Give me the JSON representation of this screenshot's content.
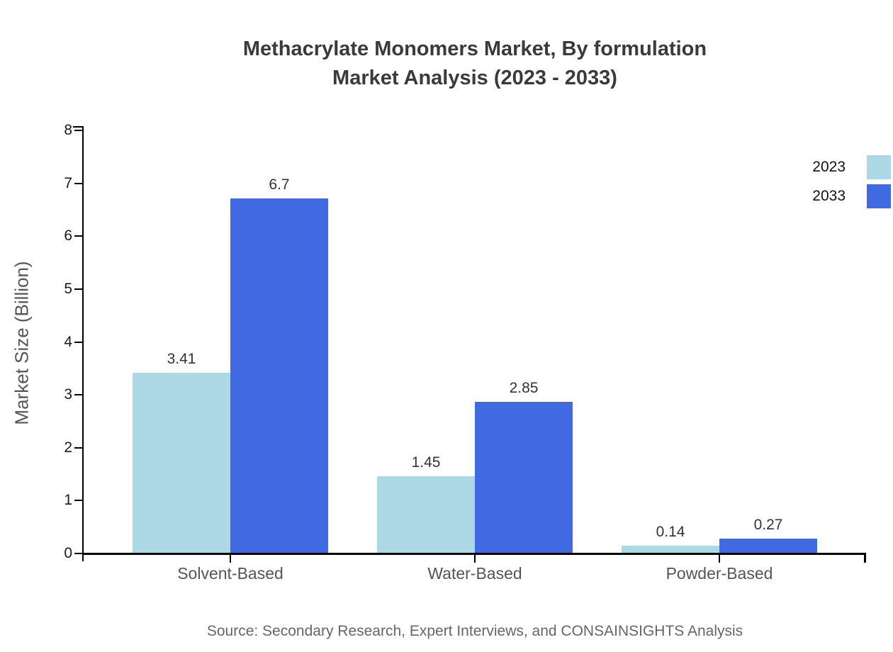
{
  "title": {
    "line1": "Methacrylate Monomers Market, By formulation",
    "line2": "Market Analysis (2023 - 2033)"
  },
  "source": "Source: Secondary Research, Expert Interviews, and CONSAINSIGHTS Analysis",
  "colors": {
    "series_2023": "#ADD8E6",
    "series_2033": "#4169E1",
    "axis": "#000000",
    "title_text": "#3a3a3a",
    "axis_label_gray": "#555555",
    "value_label": "#333333",
    "source_text": "#666666"
  },
  "chart_data": {
    "type": "bar",
    "title": "Methacrylate Monomers Market, By formulation Market Analysis (2023 - 2033)",
    "categories": [
      "Solvent-Based",
      "Water-Based",
      "Powder-Based"
    ],
    "series": [
      {
        "name": "2023",
        "color": "#ADD8E6",
        "values": [
          3.41,
          1.45,
          0.14
        ]
      },
      {
        "name": "2033",
        "color": "#4169E1",
        "values": [
          6.7,
          2.85,
          0.27
        ]
      }
    ],
    "xlabel": "",
    "ylabel": "Market Size (Billion)",
    "ylim": [
      0,
      8
    ],
    "yticks": [
      0,
      1,
      2,
      3,
      4,
      5,
      6,
      7,
      8
    ],
    "xlim": [
      -0.6,
      2.6
    ],
    "bar_width_units": 0.4,
    "grid": false,
    "legend_position": "top-right",
    "value_labels_shown": true
  }
}
